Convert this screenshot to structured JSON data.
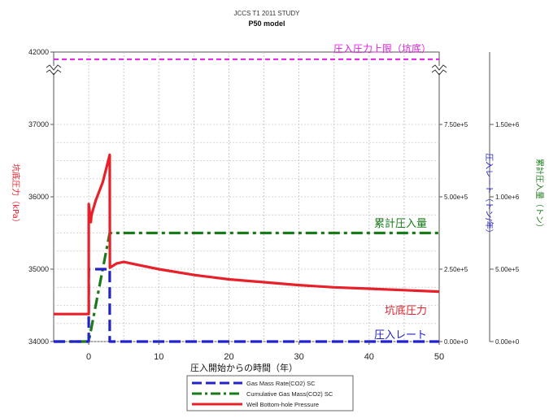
{
  "chart_data": {
    "type": "line",
    "title": "JCCS T1 2011 STUDY",
    "subtitle": "P50 model",
    "xlabel": "圧入開始からの時間（年）",
    "xlim": [
      -5,
      50
    ],
    "x_ticks": [
      "0",
      "10",
      "20",
      "30",
      "40",
      "50"
    ],
    "y_left": {
      "label": "坑底圧力（kPa）",
      "ticks": [
        "34000",
        "35000",
        "36000",
        "37000",
        "42000"
      ],
      "color": "#e8202a",
      "axis_break": "between 37000 and 42000"
    },
    "y_right1": {
      "label": "圧入レート（トン/年）",
      "ticks": [
        "0.00e+0",
        "2.50e+5",
        "5.00e+5",
        "7.50e+5"
      ],
      "color": "#2222cc",
      "ylim": [
        0,
        1000000
      ]
    },
    "y_right2": {
      "label": "累計圧入量（トン）",
      "ticks": [
        "0.00e+0",
        "5.00e+5",
        "1.00e+6",
        "1.50e+6"
      ],
      "color": "#1a7a1a",
      "ylim": [
        0,
        2000000
      ]
    },
    "annotations": {
      "pressure_limit": "圧入圧力上限（坑底）",
      "cumulative": "累計圧入量",
      "bottomhole": "坑底圧力",
      "rate": "圧入レート"
    },
    "series": [
      {
        "name": "Gas Mass Rate(CO2) SC",
        "axis": "y_right1",
        "color": "#2222cc",
        "style": "dashed",
        "x": [
          -5,
          0,
          0,
          3,
          3,
          50
        ],
        "y": [
          0,
          0,
          250000,
          250000,
          0,
          0
        ]
      },
      {
        "name": "Cumulative Gas Mass(CO2) SC",
        "axis": "y_right2",
        "color": "#1a7a1a",
        "style": "dashdot",
        "x": [
          -5,
          0,
          3,
          50
        ],
        "y": [
          0,
          0,
          750000,
          750000
        ]
      },
      {
        "name": "Well Bottom-hole Pressure",
        "axis": "y_left",
        "color": "#e8202a",
        "style": "solid",
        "x": [
          -5,
          0,
          0,
          0.3,
          0.4,
          1,
          2,
          3,
          3.02,
          4,
          5,
          7,
          10,
          15,
          20,
          25,
          30,
          35,
          40,
          45,
          50
        ],
        "y": [
          34380,
          34380,
          35900,
          35650,
          35750,
          35950,
          36200,
          36580,
          35020,
          35080,
          35100,
          35060,
          35000,
          34920,
          34860,
          34820,
          34780,
          34750,
          34730,
          34710,
          34690
        ]
      },
      {
        "name": "圧入圧力上限（坑底）",
        "axis": "y_left",
        "color": "#e020e0",
        "style": "dashed",
        "x": [
          -5,
          50
        ],
        "y": [
          41900,
          41900
        ]
      }
    ],
    "grid": true,
    "legend_position": "bottom-center"
  }
}
